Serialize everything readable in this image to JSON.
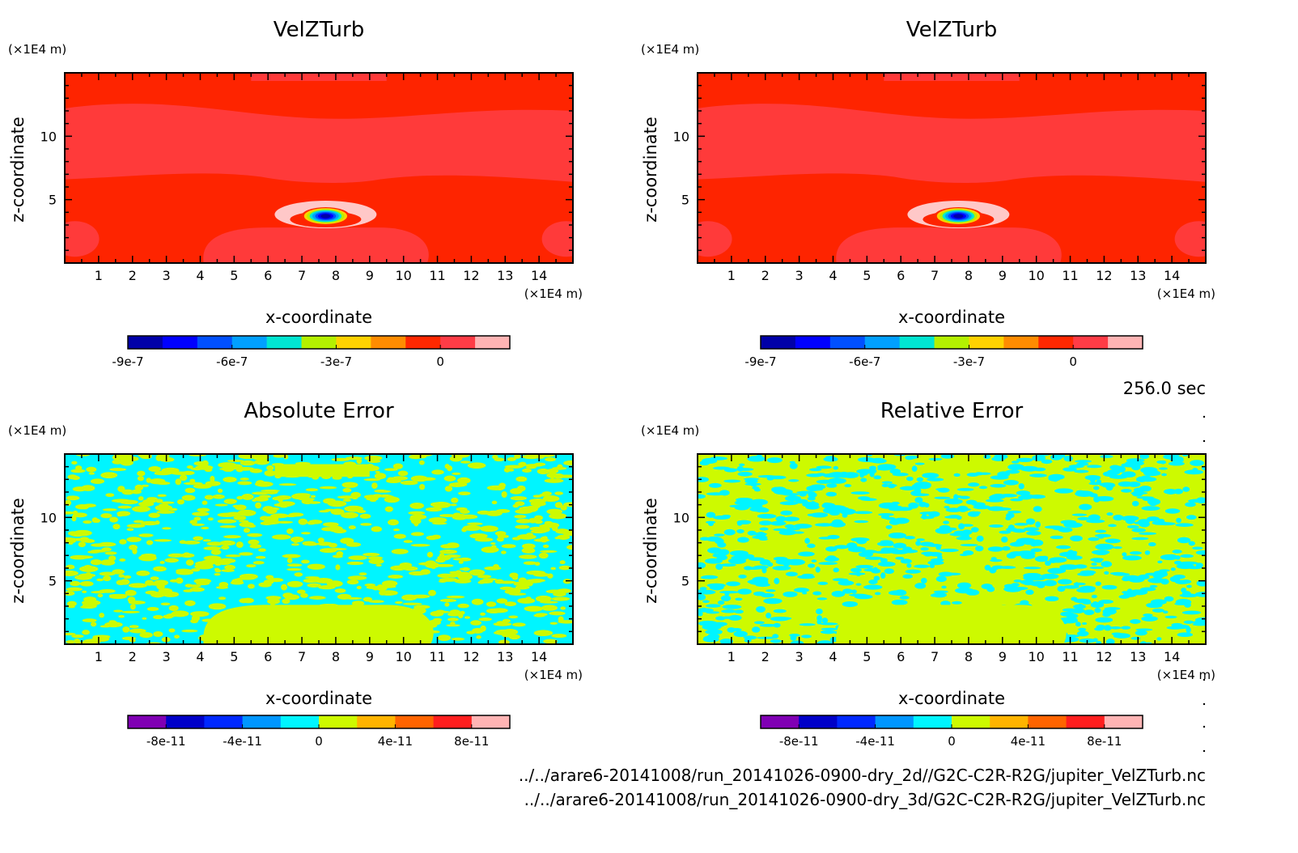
{
  "time_label": "256.0 sec",
  "files": [
    "../../arare6-20141008/run_20141026-0900-dry_2d//G2C-C2R-R2G/jupiter_VelZTurb.nc",
    "../../arare6-20141008/run_20141026-0900-dry_3d/G2C-C2R-R2G/jupiter_VelZTurb.nc"
  ],
  "colors": {
    "red_bg": "#fe2400",
    "red_light": "#ff3a3a",
    "pink": "#ffc8c8",
    "cyan": "#00f5ff",
    "yellow_green": "#cdfa00"
  },
  "chart_data": [
    {
      "type": "heatmap",
      "panel": "top-left",
      "title": "VelZTurb",
      "xlabel": "x-coordinate",
      "ylabel": "z-coordinate",
      "x_unit": "(×1E4 m)",
      "y_unit": "(×1E4 m)",
      "xlim": [
        0,
        15
      ],
      "ylim": [
        0,
        15
      ],
      "x_ticks": [
        "1",
        "2",
        "3",
        "4",
        "5",
        "6",
        "7",
        "8",
        "9",
        "10",
        "11",
        "12",
        "13",
        "14"
      ],
      "y_ticks": [
        "5",
        "10"
      ],
      "colorbar": {
        "levels": 11,
        "colors": [
          "#0000a8",
          "#0000ff",
          "#0050ff",
          "#00a0ff",
          "#00e6d2",
          "#b4f000",
          "#ffd200",
          "#ff8c00",
          "#ff2800",
          "#ff3c46",
          "#ffb4b4"
        ],
        "tick_labels": [
          "-9e-7",
          "-6e-7",
          "-3e-7",
          "0"
        ],
        "tick_positions": [
          0,
          3,
          6,
          9
        ]
      },
      "features": [
        {
          "name": "negative core",
          "x": 7.7,
          "z": 3.7,
          "min": -9e-07
        },
        {
          "name": "positive ring",
          "x": 7.7,
          "z": 4.0,
          "value": 1.5e-07
        }
      ]
    },
    {
      "type": "heatmap",
      "panel": "top-right",
      "title": "VelZTurb",
      "xlabel": "x-coordinate",
      "ylabel": "z-coordinate",
      "x_unit": "(×1E4 m)",
      "y_unit": "(×1E4 m)",
      "xlim": [
        0,
        15
      ],
      "ylim": [
        0,
        15
      ],
      "x_ticks": [
        "1",
        "2",
        "3",
        "4",
        "5",
        "6",
        "7",
        "8",
        "9",
        "10",
        "11",
        "12",
        "13",
        "14"
      ],
      "y_ticks": [
        "5",
        "10"
      ],
      "colorbar": {
        "levels": 11,
        "colors": [
          "#0000a8",
          "#0000ff",
          "#0050ff",
          "#00a0ff",
          "#00e6d2",
          "#b4f000",
          "#ffd200",
          "#ff8c00",
          "#ff2800",
          "#ff3c46",
          "#ffb4b4"
        ],
        "tick_labels": [
          "-9e-7",
          "-6e-7",
          "-3e-7",
          "0"
        ],
        "tick_positions": [
          0,
          3,
          6,
          9
        ]
      },
      "features": [
        {
          "name": "negative core",
          "x": 7.7,
          "z": 3.7,
          "min": -9e-07
        },
        {
          "name": "positive ring",
          "x": 7.7,
          "z": 4.0,
          "value": 1.5e-07
        }
      ]
    },
    {
      "type": "heatmap",
      "panel": "bottom-left",
      "title": "Absolute Error",
      "xlabel": "x-coordinate",
      "ylabel": "z-coordinate",
      "x_unit": "(×1E4 m)",
      "y_unit": "(×1E4 m)",
      "xlim": [
        0,
        15
      ],
      "ylim": [
        0,
        15
      ],
      "x_ticks": [
        "1",
        "2",
        "3",
        "4",
        "5",
        "6",
        "7",
        "8",
        "9",
        "10",
        "11",
        "12",
        "13",
        "14"
      ],
      "y_ticks": [
        "5",
        "10"
      ],
      "colorbar": {
        "levels": 10,
        "colors": [
          "#8000b4",
          "#0000c8",
          "#0028ff",
          "#0096ff",
          "#00f5ff",
          "#cdfa00",
          "#ffb400",
          "#ff6400",
          "#ff1e1e",
          "#ffb4b4"
        ],
        "tick_labels": [
          "-8e-11",
          "-4e-11",
          "0",
          "4e-11",
          "8e-11"
        ],
        "tick_positions": [
          1,
          3,
          5,
          7,
          9
        ]
      },
      "pattern": {
        "dominant": "cyan",
        "secondary": "yellow_green",
        "value_range": [
          -2e-11,
          2e-11
        ]
      }
    },
    {
      "type": "heatmap",
      "panel": "bottom-right",
      "title": "Relative Error",
      "xlabel": "x-coordinate",
      "ylabel": "z-coordinate",
      "x_unit": "(×1E4 m)",
      "y_unit": "(×1E4 m)",
      "xlim": [
        0,
        15
      ],
      "ylim": [
        0,
        15
      ],
      "x_ticks": [
        "1",
        "2",
        "3",
        "4",
        "5",
        "6",
        "7",
        "8",
        "9",
        "10",
        "11",
        "12",
        "13",
        "14"
      ],
      "y_ticks": [
        "5",
        "10"
      ],
      "colorbar": {
        "levels": 10,
        "colors": [
          "#8000b4",
          "#0000c8",
          "#0028ff",
          "#0096ff",
          "#00f5ff",
          "#cdfa00",
          "#ffb400",
          "#ff6400",
          "#ff1e1e",
          "#ffb4b4"
        ],
        "tick_labels": [
          "-8e-11",
          "-4e-11",
          "0",
          "4e-11",
          "8e-11"
        ],
        "tick_positions": [
          1,
          3,
          5,
          7,
          9
        ]
      },
      "pattern": {
        "dominant": "yellow_green",
        "secondary": "cyan",
        "value_range": [
          -2e-11,
          2e-11
        ]
      }
    }
  ]
}
